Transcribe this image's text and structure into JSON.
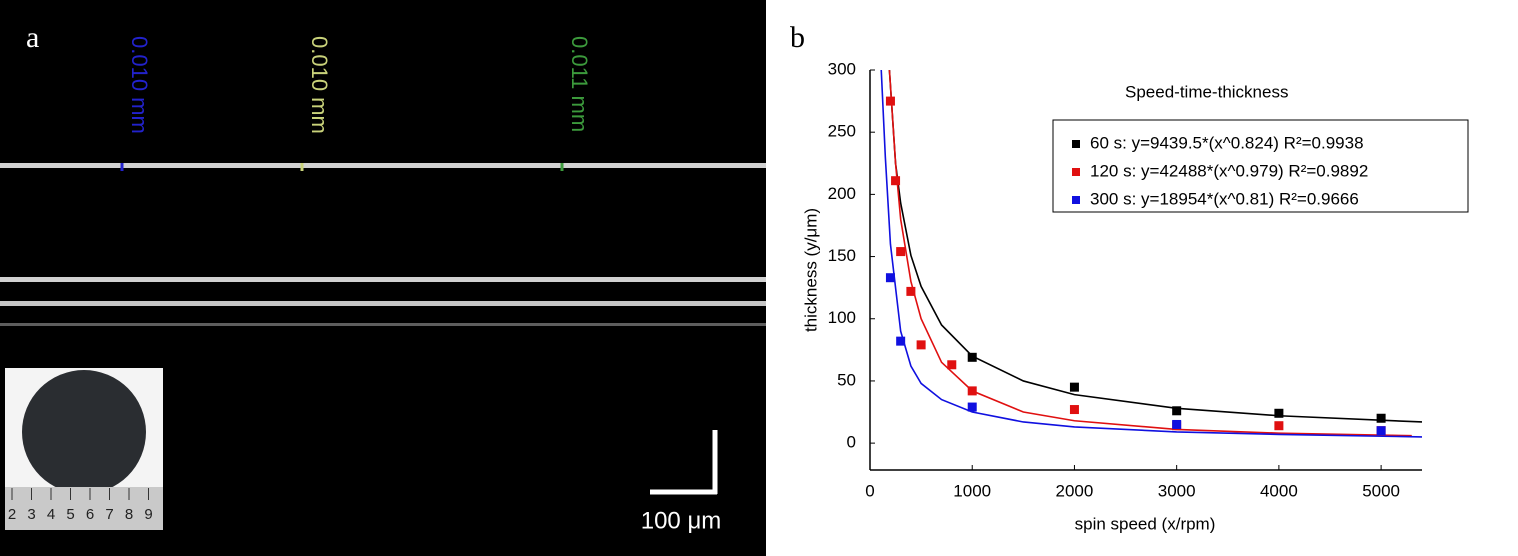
{
  "panel_a": {
    "label": "a",
    "measurements": [
      {
        "text": "0.010 mm",
        "color": "#2222cc"
      },
      {
        "text": "0.010 mm",
        "color": "#c9d27a"
      },
      {
        "text": "0.011 mm",
        "color": "#3c9a3c"
      }
    ],
    "ruler_labels": [
      2,
      3,
      4,
      5,
      6,
      7,
      8,
      9
    ],
    "scale_bar": "100 μm"
  },
  "chart_data": {
    "type": "scatter",
    "panel_label": "b",
    "title": "Speed-time-thickness",
    "x_label": "spin speed (x/rpm)",
    "y_label": "thickness (y/μm)",
    "xlim": [
      0,
      5400
    ],
    "ylim": [
      -20,
      300
    ],
    "xticks": [
      0,
      1000,
      2000,
      3000,
      4000,
      5000
    ],
    "yticks": [
      0,
      50,
      100,
      150,
      200,
      250,
      300
    ],
    "series": [
      {
        "name": "60 s: y=9439.5*(x^0.824) R²=0.9938",
        "color": "#000000",
        "x": [
          1000,
          2000,
          3000,
          4000,
          5000
        ],
        "values": [
          69,
          45,
          26,
          24,
          20
        ]
      },
      {
        "name": "120 s: y=42488*(x^0.979) R²=0.9892",
        "color": "#e01010",
        "x": [
          200,
          250,
          300,
          400,
          500,
          800,
          1000,
          2000,
          3000,
          4000,
          5000
        ],
        "values": [
          275,
          211,
          154,
          122,
          79,
          63,
          42,
          27,
          14,
          14,
          10
        ]
      },
      {
        "name": "300 s: y=18954*(x^0.81) R²=0.9666",
        "color": "#1010e0",
        "x": [
          200,
          300,
          1000,
          3000,
          5000
        ],
        "values": [
          133,
          82,
          29,
          15,
          10
        ]
      }
    ],
    "fit_lines": [
      {
        "color": "#000000",
        "x": [
          190,
          250,
          300,
          400,
          500,
          700,
          1000,
          1500,
          2000,
          3000,
          4000,
          5400
        ],
        "values": [
          300,
          225,
          193,
          151,
          126,
          95,
          70,
          50,
          39,
          28,
          22,
          17
        ]
      },
      {
        "color": "#e01010",
        "x": [
          190,
          250,
          300,
          400,
          500,
          700,
          1000,
          1500,
          2000,
          3000,
          4000,
          5300
        ],
        "values": [
          300,
          225,
          180,
          130,
          100,
          65,
          42,
          25,
          18,
          11,
          8,
          6
        ]
      },
      {
        "color": "#1010e0",
        "x": [
          110,
          150,
          200,
          300,
          400,
          500,
          700,
          1000,
          1500,
          2000,
          3000,
          4000,
          5400
        ],
        "values": [
          300,
          230,
          160,
          90,
          62,
          48,
          35,
          25,
          17,
          13,
          9,
          7,
          5
        ]
      }
    ]
  }
}
